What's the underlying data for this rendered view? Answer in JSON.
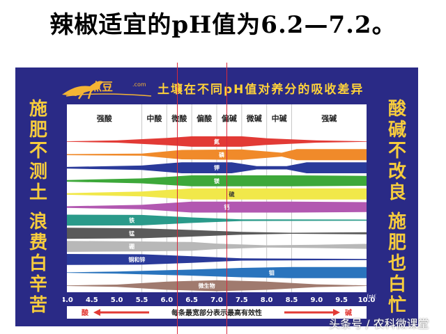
{
  "headline": "辣椒适宜的pH值为6.2—7.2。",
  "logo": {
    "name": "点豆",
    "domain": ".com"
  },
  "chart_data": {
    "type": "band",
    "title": "土壤在不同pH值对养分的吸收差异",
    "left_slogan": [
      "施",
      "肥",
      "不",
      "测",
      "土",
      "浪",
      "费",
      "白",
      "辛",
      "苦"
    ],
    "right_slogan": [
      "酸",
      "碱",
      "不",
      "改",
      "良",
      "施",
      "肥",
      "也",
      "白",
      "忙"
    ],
    "x_ticks": [
      4.0,
      4.5,
      5.0,
      5.5,
      6.0,
      6.5,
      7.0,
      7.5,
      8.0,
      8.5,
      9.0,
      9.5,
      10.0
    ],
    "x_unit": "(pH)",
    "xlim": [
      4.0,
      10.0
    ],
    "zones": [
      {
        "label": "强酸",
        "from": 4.0,
        "to": 5.5
      },
      {
        "label": "中酸",
        "from": 5.5,
        "to": 6.0
      },
      {
        "label": "微酸",
        "from": 6.0,
        "to": 6.5
      },
      {
        "label": "偏酸",
        "from": 6.5,
        "to": 7.0
      },
      {
        "label": "偏碱",
        "from": 7.0,
        "to": 7.5
      },
      {
        "label": "微碱",
        "from": 7.5,
        "to": 8.0
      },
      {
        "label": "中碱",
        "from": 8.0,
        "to": 8.5
      },
      {
        "label": "强碱",
        "from": 8.5,
        "to": 10.0
      }
    ],
    "nutrients": [
      {
        "label": "氮",
        "color": "#e23a35",
        "label_ph": 7.0,
        "width": [
          [
            4.0,
            0.05
          ],
          [
            5.0,
            0.2
          ],
          [
            6.0,
            0.65
          ],
          [
            6.5,
            0.95
          ],
          [
            7.5,
            0.95
          ],
          [
            8.0,
            0.6
          ],
          [
            9.0,
            0.2
          ],
          [
            10.0,
            0.05
          ]
        ]
      },
      {
        "label": "磷",
        "color": "#f08a2a",
        "label_ph": 7.1,
        "width": [
          [
            4.0,
            0.1
          ],
          [
            5.5,
            0.2
          ],
          [
            6.3,
            0.85
          ],
          [
            7.5,
            0.95
          ],
          [
            8.3,
            0.35
          ],
          [
            8.6,
            1.0
          ],
          [
            10.0,
            1.0
          ]
        ]
      },
      {
        "label": "钾",
        "color": "#2a3a9a",
        "label_ph": 7.0,
        "width": [
          [
            4.0,
            0.15
          ],
          [
            5.5,
            0.4
          ],
          [
            6.3,
            1.0
          ],
          [
            7.3,
            1.0
          ],
          [
            7.8,
            0.3
          ],
          [
            8.4,
            0.3
          ],
          [
            8.8,
            1.0
          ],
          [
            10.0,
            1.0
          ]
        ]
      },
      {
        "label": "镁",
        "color": "#3da83a",
        "label_ph": 7.0,
        "width": [
          [
            4.0,
            0.15
          ],
          [
            5.5,
            0.45
          ],
          [
            6.5,
            1.0
          ],
          [
            8.5,
            1.0
          ],
          [
            10.0,
            0.9
          ]
        ]
      },
      {
        "label": "硫",
        "color": "#f1e84a",
        "label_ph": 7.3,
        "width": [
          [
            4.0,
            0.15
          ],
          [
            5.5,
            0.45
          ],
          [
            6.5,
            1.0
          ],
          [
            10.0,
            1.0
          ]
        ]
      },
      {
        "label": "钙",
        "color": "#b258b1",
        "label_ph": 7.2,
        "width": [
          [
            4.0,
            0.15
          ],
          [
            5.5,
            0.4
          ],
          [
            6.5,
            1.0
          ],
          [
            8.5,
            1.0
          ],
          [
            10.0,
            0.9
          ]
        ]
      },
      {
        "label": "铁",
        "color": "#2a9a8a",
        "label_ph": 5.3,
        "width": [
          [
            4.0,
            1.0
          ],
          [
            5.5,
            0.95
          ],
          [
            6.5,
            0.5
          ],
          [
            7.5,
            0.15
          ],
          [
            10.0,
            0.1
          ]
        ]
      },
      {
        "label": "锰",
        "color": "#5a5a5a",
        "label_ph": 5.3,
        "width": [
          [
            4.0,
            1.0
          ],
          [
            5.5,
            0.9
          ],
          [
            6.5,
            0.6
          ],
          [
            7.5,
            0.25
          ],
          [
            8.5,
            0.1
          ],
          [
            10.0,
            0.2
          ]
        ]
      },
      {
        "label": "硼",
        "color": "#b8b8b8",
        "label_ph": 5.3,
        "width": [
          [
            4.0,
            1.0
          ],
          [
            5.5,
            0.9
          ],
          [
            6.5,
            0.8
          ],
          [
            7.0,
            0.5
          ],
          [
            8.0,
            0.2
          ],
          [
            9.0,
            0.3
          ],
          [
            10.0,
            0.45
          ]
        ]
      },
      {
        "label": "铜和锌",
        "color": "#2a3a9a",
        "label_ph": 5.4,
        "width": [
          [
            4.0,
            1.0
          ],
          [
            5.5,
            0.95
          ],
          [
            6.5,
            0.6
          ],
          [
            7.5,
            0.2
          ],
          [
            10.0,
            0.1
          ]
        ]
      },
      {
        "label": "钼",
        "color": "#2a74bd",
        "label_ph": 8.1,
        "width": [
          [
            4.0,
            0.05
          ],
          [
            5.0,
            0.2
          ],
          [
            6.5,
            0.55
          ],
          [
            7.5,
            0.85
          ],
          [
            8.5,
            1.0
          ],
          [
            10.0,
            1.0
          ]
        ]
      },
      {
        "label": "微生物",
        "color": "#a07a6e",
        "label_ph": 6.8,
        "width": [
          [
            4.0,
            0.05
          ],
          [
            5.0,
            0.2
          ],
          [
            6.0,
            0.75
          ],
          [
            7.0,
            1.0
          ],
          [
            8.0,
            0.75
          ],
          [
            9.0,
            0.25
          ],
          [
            10.0,
            0.05
          ]
        ]
      }
    ],
    "bottom_left_label": "酸",
    "bottom_right_label": "碱",
    "bottom_note": "每条最宽部分表示最高有效性",
    "reference_lines_ph": [
      6.2,
      7.2
    ]
  },
  "watermark": "头条号 / 农科微课堂",
  "colors": {
    "panel": "#2a2a86",
    "accent": "#f6cc3d",
    "arrow": "#e23a35",
    "reference_line": "#d8283a"
  }
}
